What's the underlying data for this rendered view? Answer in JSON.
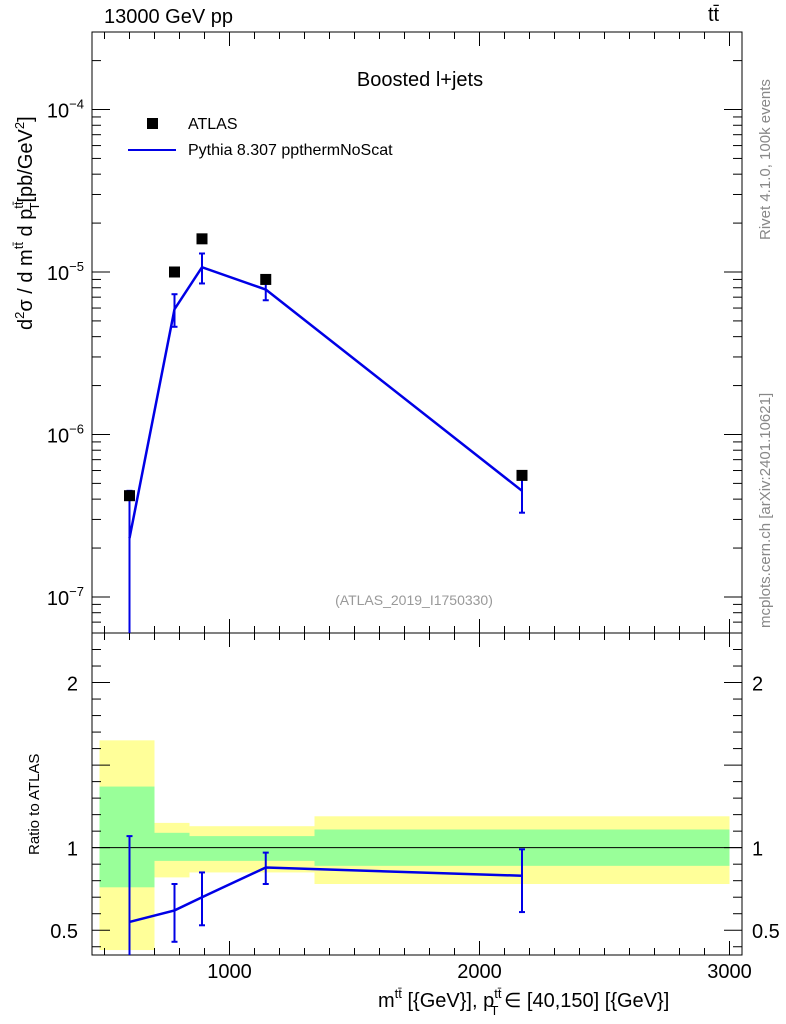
{
  "header": {
    "left": "13000 GeV pp",
    "right": "tt̄"
  },
  "side": {
    "rivet": "Rivet 4.1.0,  100k events",
    "mcplots": "mcplots.cern.ch [arXiv:2401.10621]"
  },
  "chart_data": {
    "type": "scatter",
    "title": "Boosted l+jets",
    "analysis_tag": "(ATLAS_2019_I1750330)",
    "xlabel": "m^{tt̄} [{GeV}], p_T^{tt̄} ∈ [40,150] [{GeV}]",
    "xlabel_parts": {
      "m": "m",
      "m_sup": "tt̄",
      "mid": " [{GeV}], p",
      "p_sub": "T",
      "p_sup": "tt̄",
      "tail": " ∈ [40,150] [{GeV}]"
    },
    "ylabel": "d²σ / d m^{tt̄} d p_T^{tt̄} [pb/GeV²]",
    "ylabel_ratio": "Ratio to ATLAS",
    "xlim": [
      450,
      3050
    ],
    "ylim": [
      6e-08,
      0.0003
    ],
    "ratio_ylim": [
      0.35,
      2.3
    ],
    "x_ticks": [
      {
        "value": 1000,
        "label": "1000"
      },
      {
        "value": 2000,
        "label": "2000"
      },
      {
        "value": 3000,
        "label": "3000"
      }
    ],
    "y_ticks": [
      {
        "value": 1e-07,
        "label": "10",
        "exp": "−7"
      },
      {
        "value": 1e-06,
        "label": "10",
        "exp": "−6"
      },
      {
        "value": 1e-05,
        "label": "10",
        "exp": "−5"
      },
      {
        "value": 0.0001,
        "label": "10",
        "exp": "−4"
      }
    ],
    "ratio_y_ticks": [
      {
        "value": 0.5,
        "label": "0.5"
      },
      {
        "value": 1,
        "label": "1"
      },
      {
        "value": 2,
        "label": "2"
      }
    ],
    "series": [
      {
        "name": "ATLAS",
        "kind": "data",
        "color": "#000000",
        "x": [
          600,
          780,
          890,
          1145,
          2170
        ],
        "y": [
          4.2e-07,
          1e-05,
          1.6e-05,
          9e-06,
          5.6e-07
        ]
      },
      {
        "name": "Pythia 8.307 ppthermNoScat",
        "kind": "mc",
        "color": "#0000e6",
        "x": [
          600,
          780,
          890,
          1145,
          2170
        ],
        "y": [
          2.3e-07,
          5.9e-06,
          1.07e-05,
          7.8e-06,
          4.5e-07
        ],
        "err_lo": [
          5.5e-08,
          4.6e-06,
          8.5e-06,
          6.7e-06,
          3.3e-07
        ],
        "err_hi": [
          4.5e-07,
          7.3e-06,
          1.3e-05,
          9e-06,
          5.5e-07
        ]
      }
    ],
    "ratio": {
      "bands": [
        {
          "x0": 480,
          "x1": 700,
          "yellow": [
            0.38,
            1.65
          ],
          "green": [
            0.76,
            1.37
          ]
        },
        {
          "x0": 700,
          "x1": 840,
          "yellow": [
            0.82,
            1.15
          ],
          "green": [
            0.92,
            1.09
          ]
        },
        {
          "x0": 840,
          "x1": 1340,
          "yellow": [
            0.85,
            1.13
          ],
          "green": [
            0.92,
            1.07
          ]
        },
        {
          "x0": 1340,
          "x1": 3000,
          "yellow": [
            0.78,
            1.19
          ],
          "green": [
            0.89,
            1.11
          ]
        }
      ],
      "mc": {
        "x": [
          600,
          780,
          890,
          1145,
          2170
        ],
        "y": [
          0.55,
          0.62,
          0.7,
          0.88,
          0.83
        ],
        "err_lo": [
          0.3,
          0.43,
          0.53,
          0.78,
          0.61
        ],
        "err_hi": [
          1.07,
          0.78,
          0.85,
          0.97,
          0.99
        ]
      }
    },
    "legend_position": "top-left"
  }
}
